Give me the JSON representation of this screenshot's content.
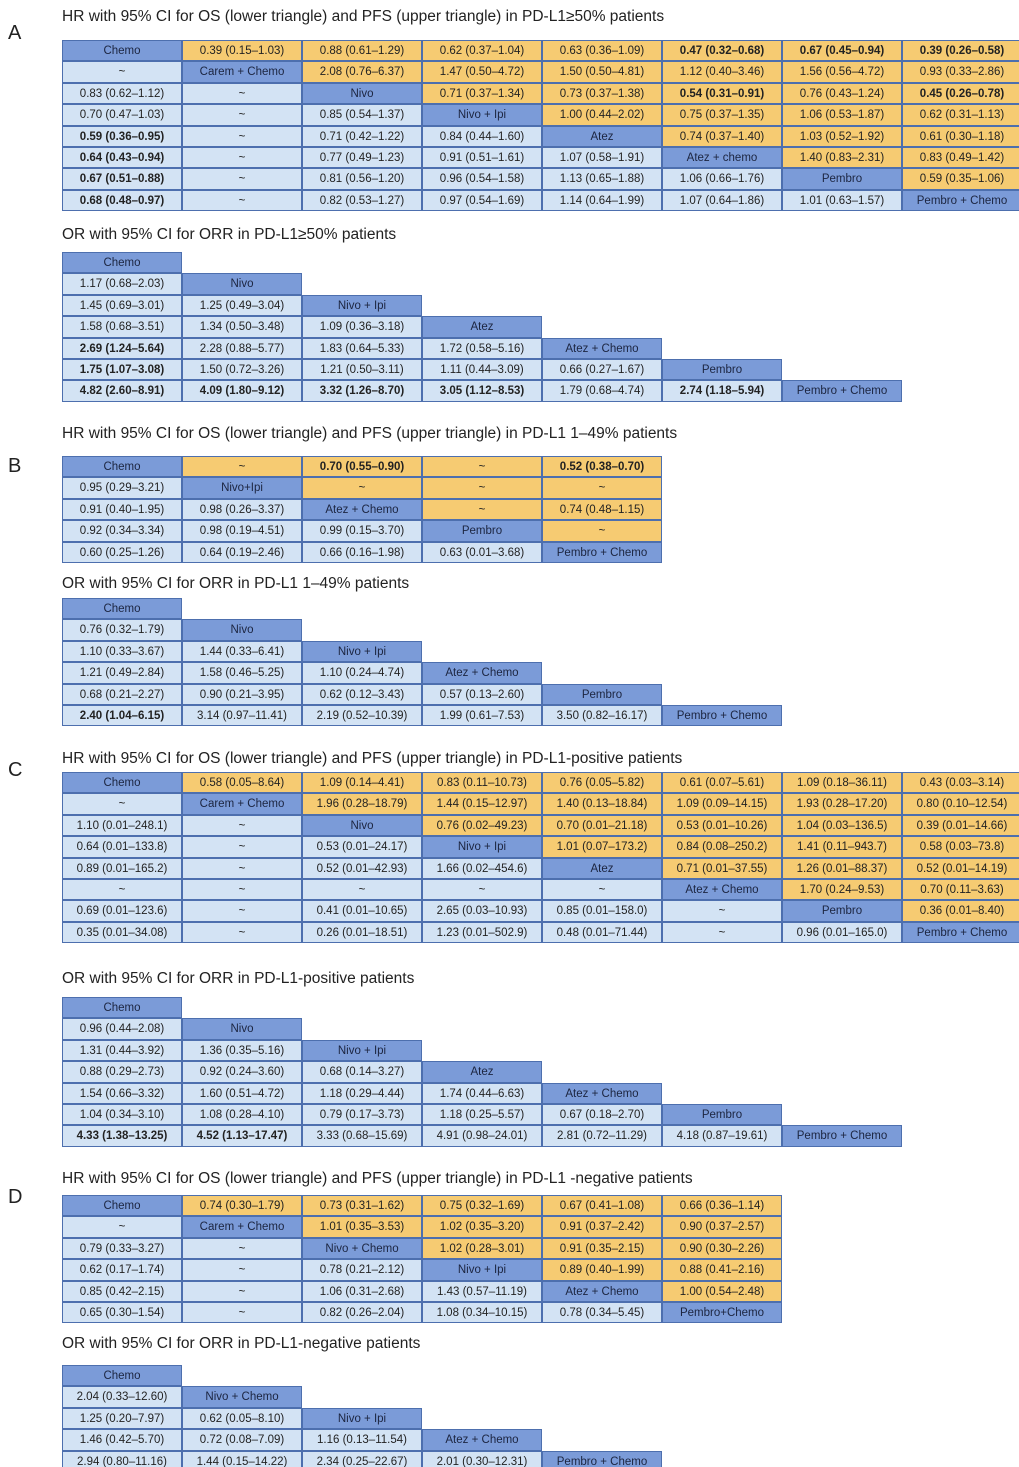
{
  "sections": [
    {
      "label": "A",
      "tables": [
        {
          "title": "HR with 95% CI for OS (lower triangle) and PFS (upper triangle) in PD-L1≥50% patients",
          "rows": [
            [
              "Chemo",
              "0.39 (0.15–1.03)",
              "0.88 (0.61–1.29)",
              "0.62 (0.37–1.04)",
              "0.63 (0.36–1.09)",
              "0.47 (0.32–0.68)",
              "0.67 (0.45–0.94)",
              "0.39 (0.26–0.58)"
            ],
            [
              "~",
              "Carem + Chemo",
              "2.08 (0.76–6.37)",
              "1.47 (0.50–4.72)",
              "1.50 (0.50–4.81)",
              "1.12 (0.40–3.46)",
              "1.56 (0.56–4.72)",
              "0.93 (0.33–2.86)"
            ],
            [
              "0.83 (0.62–1.12)",
              "~",
              "Nivo",
              "0.71 (0.37–1.34)",
              "0.73 (0.37–1.38)",
              "0.54 (0.31–0.91)",
              "0.76 (0.43–1.24)",
              "0.45 (0.26–0.78)"
            ],
            [
              "0.70 (0.47–1.03)",
              "~",
              "0.85 (0.54–1.37)",
              "Nivo + Ipi",
              "1.00 (0.44–2.02)",
              "0.75 (0.37–1.35)",
              "1.06 (0.53–1.87)",
              "0.62 (0.31–1.13)"
            ],
            [
              "0.59 (0.36–0.95)",
              "~",
              "0.71 (0.42–1.22)",
              "0.84 (0.44–1.60)",
              "Atez",
              "0.74 (0.37–1.40)",
              "1.03 (0.52–1.92)",
              "0.61 (0.30–1.18)"
            ],
            [
              "0.64 (0.43–0.94)",
              "~",
              "0.77 (0.49–1.23)",
              "0.91 (0.51–1.61)",
              "1.07 (0.58–1.91)",
              "Atez + chemo",
              "1.40 (0.83–2.31)",
              "0.83 (0.49–1.42)"
            ],
            [
              "0.67 (0.51–0.88)",
              "~",
              "0.81 (0.56–1.20)",
              "0.96 (0.54–1.58)",
              "1.13 (0.65–1.88)",
              "1.06 (0.66–1.76)",
              "Pembro",
              "0.59 (0.35–1.06)"
            ],
            [
              "0.68 (0.48–0.97)",
              "~",
              "0.82 (0.53–1.27)",
              "0.97 (0.54–1.69)",
              "1.14 (0.64–1.99)",
              "1.07 (0.64–1.86)",
              "1.01 (0.63–1.57)",
              "Pembro + Chemo"
            ]
          ],
          "bold": [
            [
              0,
              5
            ],
            [
              0,
              6
            ],
            [
              0,
              7
            ],
            [
              2,
              5
            ],
            [
              2,
              7
            ],
            [
              4,
              0
            ],
            [
              5,
              0
            ],
            [
              6,
              0
            ],
            [
              7,
              0
            ]
          ]
        },
        {
          "title": "OR with 95% CI for ORR in PD-L1≥50% patients",
          "rows": [
            [
              "Chemo"
            ],
            [
              "1.17 (0.68–2.03)",
              "Nivo"
            ],
            [
              "1.45 (0.69–3.01)",
              "1.25 (0.49–3.04)",
              "Nivo + Ipi"
            ],
            [
              "1.58 (0.68–3.51)",
              "1.34 (0.50–3.48)",
              "1.09 (0.36–3.18)",
              "Atez"
            ],
            [
              "2.69 (1.24–5.64)",
              "2.28 (0.88–5.77)",
              "1.83 (0.64–5.33)",
              "1.72 (0.58–5.16)",
              "Atez + Chemo"
            ],
            [
              "1.75 (1.07–3.08)",
              "1.50 (0.72–3.26)",
              "1.21 (0.50–3.11)",
              "1.11 (0.44–3.09)",
              "0.66 (0.27–1.67)",
              "Pembro"
            ],
            [
              "4.82 (2.60–8.91)",
              "4.09 (1.80–9.12)",
              "3.32 (1.26–8.70)",
              "3.05 (1.12–8.53)",
              "1.79 (0.68–4.74)",
              "2.74 (1.18–5.94)",
              "Pembro + Chemo"
            ]
          ],
          "bold": [
            [
              4,
              0
            ],
            [
              5,
              0
            ],
            [
              6,
              0
            ],
            [
              6,
              1
            ],
            [
              6,
              2
            ],
            [
              6,
              3
            ],
            [
              6,
              5
            ]
          ]
        }
      ]
    },
    {
      "label": "B",
      "tables": [
        {
          "title": "HR with 95% CI for OS (lower triangle) and PFS (upper triangle) in PD-L1 1–49% patients",
          "rows": [
            [
              "Chemo",
              "~",
              "0.70 (0.55–0.90)",
              "~",
              "0.52 (0.38–0.70)"
            ],
            [
              "0.95 (0.29–3.21)",
              "Nivo+Ipi",
              "~",
              "~",
              "~"
            ],
            [
              "0.91 (0.40–1.95)",
              "0.98 (0.26–3.37)",
              "Atez + Chemo",
              "~",
              "0.74 (0.48–1.15)"
            ],
            [
              "0.92 (0.34–3.34)",
              "0.98 (0.19–4.51)",
              "0.99 (0.15–3.70)",
              "Pembro",
              "~"
            ],
            [
              "0.60 (0.25–1.26)",
              "0.64 (0.19–2.46)",
              "0.66 (0.16–1.98)",
              "0.63 (0.01–3.68)",
              "Pembro + Chemo"
            ]
          ],
          "bold": [
            [
              0,
              2
            ],
            [
              0,
              4
            ]
          ]
        },
        {
          "title": "OR with 95% CI for ORR in PD-L1 1–49% patients",
          "rows": [
            [
              "Chemo"
            ],
            [
              "0.76 (0.32–1.79)",
              "Nivo"
            ],
            [
              "1.10 (0.33–3.67)",
              "1.44 (0.33–6.41)",
              "Nivo + Ipi"
            ],
            [
              "1.21 (0.49–2.84)",
              "1.58 (0.46–5.25)",
              "1.10 (0.24–4.74)",
              "Atez + Chemo"
            ],
            [
              "0.68 (0.21–2.27)",
              "0.90 (0.21–3.95)",
              "0.62 (0.12–3.43)",
              "0.57 (0.13–2.60)",
              "Pembro"
            ],
            [
              "2.40 (1.04–6.15)",
              "3.14 (0.97–11.41)",
              "2.19 (0.52–10.39)",
              "1.99 (0.61–7.53)",
              "3.50 (0.82–16.17)",
              "Pembro + Chemo"
            ]
          ],
          "bold": [
            [
              5,
              0
            ]
          ]
        }
      ]
    },
    {
      "label": "C",
      "tables": [
        {
          "title": "HR with 95% CI for OS (lower triangle) and PFS (upper triangle) in PD-L1-positive patients",
          "rows": [
            [
              "Chemo",
              "0.58 (0.05–8.64)",
              "1.09 (0.14–4.41)",
              "0.83 (0.11–10.73)",
              "0.76 (0.05–5.82)",
              "0.61 (0.07–5.61)",
              "1.09 (0.18–36.11)",
              "0.43 (0.03–3.14)"
            ],
            [
              "~",
              "Carem + Chemo",
              "1.96 (0.28–18.79)",
              "1.44 (0.15–12.97)",
              "1.40 (0.13–18.84)",
              "1.09 (0.09–14.15)",
              "1.93 (0.28–17.20)",
              "0.80 (0.10–12.54)"
            ],
            [
              "1.10 (0.01–248.1)",
              "~",
              "Nivo",
              "0.76 (0.02–49.23)",
              "0.70 (0.01–21.18)",
              "0.53 (0.01–10.26)",
              "1.04 (0.03–136.5)",
              "0.39 (0.01–14.66)"
            ],
            [
              "0.64 (0.01–133.8)",
              "~",
              "0.53 (0.01–24.17)",
              "Nivo + Ipi",
              "1.01 (0.07–173.2)",
              "0.84 (0.08–250.2)",
              "1.41 (0.11–943.7)",
              "0.58 (0.03–73.8)"
            ],
            [
              "0.89 (0.01–165.2)",
              "~",
              "0.52 (0.01–42.93)",
              "1.66 (0.02–454.6)",
              "Atez",
              "0.71 (0.01–37.55)",
              "1.26 (0.01–88.37)",
              "0.52 (0.01–14.19)"
            ],
            [
              "~",
              "~",
              "~",
              "~",
              "~",
              "Atez + Chemo",
              "1.70 (0.24–9.53)",
              "0.70 (0.11–3.63)"
            ],
            [
              "0.69 (0.01–123.6)",
              "~",
              "0.41 (0.01–10.65)",
              "2.65 (0.03–10.93)",
              "0.85 (0.01–158.0)",
              "~",
              "Pembro",
              "0.36 (0.01–8.40)"
            ],
            [
              "0.35 (0.01–34.08)",
              "~",
              "0.26 (0.01–18.51)",
              "1.23 (0.01–502.9)",
              "0.48 (0.01–71.44)",
              "~",
              "0.96 (0.01–165.0)",
              "Pembro + Chemo"
            ]
          ],
          "bold": []
        },
        {
          "title": "OR with 95% CI for ORR in PD-L1-positive patients",
          "rows": [
            [
              "Chemo"
            ],
            [
              "0.96 (0.44–2.08)",
              "Nivo"
            ],
            [
              "1.31 (0.44–3.92)",
              "1.36 (0.35–5.16)",
              "Nivo + Ipi"
            ],
            [
              "0.88 (0.29–2.73)",
              "0.92 (0.24–3.60)",
              "0.68 (0.14–3.27)",
              "Atez"
            ],
            [
              "1.54 (0.66–3.32)",
              "1.60 (0.51–4.72)",
              "1.18 (0.29–4.44)",
              "1.74 (0.44–6.63)",
              "Atez + Chemo"
            ],
            [
              "1.04 (0.34–3.10)",
              "1.08 (0.28–4.10)",
              "0.79 (0.17–3.73)",
              "1.18 (0.25–5.57)",
              "0.67 (0.18–2.70)",
              "Pembro"
            ],
            [
              "4.33 (1.38–13.25)",
              "4.52 (1.13–17.47)",
              "3.33 (0.68–15.69)",
              "4.91 (0.98–24.01)",
              "2.81 (0.72–11.29)",
              "4.18 (0.87–19.61)",
              "Pembro + Chemo"
            ]
          ],
          "bold": [
            [
              6,
              0
            ],
            [
              6,
              1
            ]
          ]
        }
      ]
    },
    {
      "label": "D",
      "tables": [
        {
          "title": "HR with 95% CI for OS (lower triangle) and PFS (upper triangle) in PD-L1 -negative patients",
          "rows": [
            [
              "Chemo",
              "0.74 (0.30–1.79)",
              "0.73 (0.31–1.62)",
              "0.75 (0.32–1.69)",
              "0.67 (0.41–1.08)",
              "0.66 (0.36–1.14)"
            ],
            [
              "~",
              "Carem + Chemo",
              "1.01 (0.35–3.53)",
              "1.02 (0.35–3.20)",
              "0.91 (0.37–2.42)",
              "0.90 (0.37–2.57)"
            ],
            [
              "0.79 (0.33–3.27)",
              "~",
              "Nivo + Chemo",
              "1.02 (0.28–3.01)",
              "0.91 (0.35–2.15)",
              "0.90 (0.30–2.26)"
            ],
            [
              "0.62 (0.17–1.74)",
              "~",
              "0.78 (0.21–2.12)",
              "Nivo + Ipi",
              "0.89 (0.40–1.99)",
              "0.88 (0.41–2.16)"
            ],
            [
              "0.85 (0.42–2.15)",
              "~",
              "1.06 (0.31–2.68)",
              "1.43 (0.57–11.19)",
              "Atez + Chemo",
              "1.00 (0.54–2.48)"
            ],
            [
              "0.65 (0.30–1.54)",
              "~",
              "0.82 (0.26–2.04)",
              "1.08 (0.34–10.15)",
              "0.78 (0.34–5.45)",
              "Pembro+Chemo"
            ]
          ],
          "bold": []
        },
        {
          "title": "OR with 95% CI for ORR in PD-L1-negative patients",
          "rows": [
            [
              "Chemo"
            ],
            [
              "2.04 (0.33–12.60)",
              "Nivo + Chemo"
            ],
            [
              "1.25 (0.20–7.97)",
              "0.62 (0.05–8.10)",
              "Nivo + Ipi"
            ],
            [
              "1.46 (0.42–5.70)",
              "0.72 (0.08–7.09)",
              "1.16 (0.13–11.54)",
              "Atez + Chemo"
            ],
            [
              "2.94 (0.80–11.16)",
              "1.44 (0.15–14.22)",
              "2.34 (0.25–22.67)",
              "2.01 (0.30–12.31)",
              "Pembro + Chemo"
            ]
          ],
          "bold": []
        }
      ]
    }
  ]
}
